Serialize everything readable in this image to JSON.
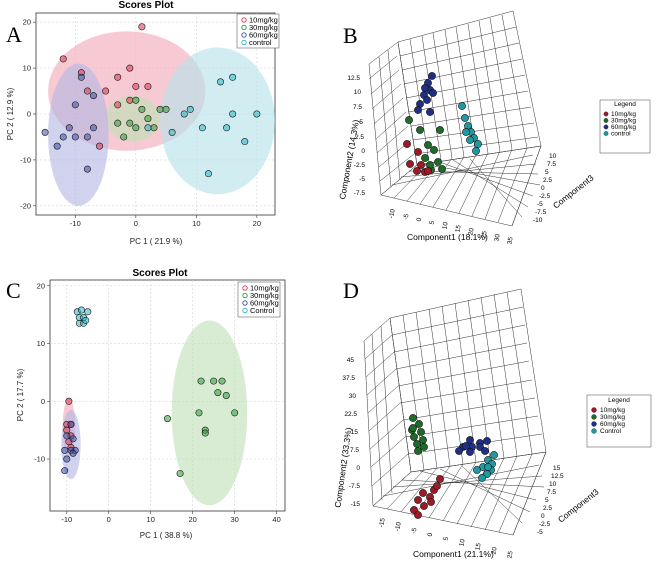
{
  "colors": {
    "10mg/kg": "#e0324f",
    "30mg/kg": "#2f9c35",
    "60mg/kg": "#3a4ea8",
    "control": "#2bb6c9",
    "10mg/kg_dark": "#9e1a26",
    "30mg/kg_dark": "#1f6b2a",
    "60mg/kg_dark": "#1f2f88",
    "control_dark": "#1e9aa3",
    "ellipse_10": "#f2a9b8",
    "ellipse_30": "#bfe0b7",
    "ellipse_60": "#b4b6e3",
    "ellipse_control": "#b5e2ea"
  },
  "chart_data": [
    {
      "panel": "A",
      "type": "scatter",
      "title": "Scores Plot",
      "xlabel": "PC 1 ( 21.9 %)",
      "ylabel": "PC 2 ( 12.9 %)",
      "xlim": [
        -16.5,
        23
      ],
      "ylim": [
        -22,
        22
      ],
      "xticks": [
        -10,
        0,
        10,
        20
      ],
      "yticks": [
        -20,
        -10,
        0,
        10,
        20
      ],
      "tick_labels_x": [
        "-10",
        "0",
        "10",
        "20"
      ],
      "tick_labels_y": [
        "-20",
        "-10",
        "0",
        "10",
        "20"
      ],
      "legend": [
        "10mg/kg",
        "30mg/kg",
        "60mg/kg",
        "control"
      ],
      "series": [
        {
          "name": "10mg/kg",
          "ellipse": {
            "cx": -1.5,
            "cy": 5,
            "rx": 13,
            "ry": 13
          },
          "points": [
            [
              1,
              19
            ],
            [
              -12,
              12
            ],
            [
              -1,
              10
            ],
            [
              -9,
              9
            ],
            [
              -3,
              8
            ],
            [
              -8,
              5
            ],
            [
              0,
              6
            ],
            [
              2,
              6
            ],
            [
              -5,
              5
            ],
            [
              -3,
              2
            ],
            [
              -1,
              3
            ],
            [
              -6,
              -7
            ]
          ]
        },
        {
          "name": "30mg/kg",
          "ellipse": {
            "cx": -0.5,
            "cy": -1,
            "rx": 4.5,
            "ry": 5
          },
          "points": [
            [
              -3,
              -2
            ],
            [
              -1,
              -2
            ],
            [
              0,
              -3
            ],
            [
              2,
              -1
            ],
            [
              3,
              -3
            ],
            [
              4,
              1
            ],
            [
              1,
              1
            ],
            [
              -2,
              -5
            ],
            [
              0,
              3
            ],
            [
              5,
              1
            ]
          ]
        },
        {
          "name": "60mg/kg",
          "ellipse": {
            "cx": -9.5,
            "cy": -4.5,
            "rx": 5,
            "ry": 15.5
          },
          "points": [
            [
              -9,
              8
            ],
            [
              -7,
              4
            ],
            [
              -10,
              2
            ],
            [
              -7,
              -3
            ],
            [
              -11,
              -3
            ],
            [
              -8,
              -5
            ],
            [
              -10,
              -5
            ],
            [
              -12,
              -5
            ],
            [
              -15,
              -4
            ],
            [
              -8,
              -12
            ],
            [
              -13,
              -7
            ]
          ]
        },
        {
          "name": "control",
          "ellipse": {
            "cx": 13.5,
            "cy": -1.5,
            "rx": 9.5,
            "ry": 16
          },
          "points": [
            [
              14,
              7
            ],
            [
              16,
              8
            ],
            [
              9,
              1
            ],
            [
              6,
              -4
            ],
            [
              11,
              -3
            ],
            [
              15,
              -3
            ],
            [
              18,
              -6
            ],
            [
              12,
              -13
            ],
            [
              16,
              0
            ],
            [
              20,
              0
            ],
            [
              2,
              -3
            ],
            [
              8,
              0
            ]
          ]
        }
      ]
    },
    {
      "panel": "B",
      "type": "scatter3d",
      "xlabel": "Component1 (18.1%)",
      "ylabel": "Component2 (14.3%)",
      "zlabel": "Component3",
      "xticks": [
        "-10",
        "-5",
        "0",
        "5",
        "10",
        "15",
        "20",
        "25",
        "30",
        "35"
      ],
      "yticks": [
        "-7.5",
        "-5",
        "-2.5",
        "0",
        "2.5",
        "5",
        "7.5",
        "10",
        "12.5"
      ],
      "zticks": [
        "-10",
        "-7.5",
        "-5",
        "-2.5",
        "0",
        "2.5",
        "5",
        "7.5",
        "10"
      ],
      "legend_title": "Legend",
      "legend": [
        "10mg/kg",
        "30mg/kg",
        "60mg/kg",
        "control"
      ]
    },
    {
      "panel": "C",
      "type": "scatter",
      "title": "Scores Plot",
      "xlabel": "PC 1 ( 38.8 %)",
      "ylabel": "PC 2 ( 17.7 %)",
      "xlim": [
        -14,
        42
      ],
      "ylim": [
        -19,
        21
      ],
      "xticks": [
        -10,
        0,
        10,
        20,
        30,
        40
      ],
      "yticks": [
        -10,
        0,
        10,
        20
      ],
      "tick_labels_x": [
        "-10",
        "0",
        "10",
        "20",
        "30",
        "40"
      ],
      "tick_labels_y": [
        "-10",
        "0",
        "10",
        "20"
      ],
      "legend": [
        "10mg/kg",
        "30mg/kg",
        "60mg/kg",
        "Control"
      ],
      "series": [
        {
          "name": "10mg/kg",
          "ellipse": {
            "cx": -9.5,
            "cy": -4.5,
            "rx": 1.5,
            "ry": 5
          },
          "points": [
            [
              -9.5,
              0
            ],
            [
              -10,
              -4
            ],
            [
              -9,
              -4
            ],
            [
              -9,
              -6
            ],
            [
              -9.5,
              -7
            ],
            [
              -9,
              -8
            ],
            [
              -10,
              -5
            ]
          ]
        },
        {
          "name": "30mg/kg",
          "ellipse": {
            "cx": 24,
            "cy": -2,
            "rx": 9,
            "ry": 16
          },
          "points": [
            [
              22,
              3.5
            ],
            [
              25,
              3.5
            ],
            [
              27,
              3.5
            ],
            [
              26,
              1.5
            ],
            [
              30,
              -2
            ],
            [
              28,
              1
            ],
            [
              23,
              -5
            ],
            [
              23,
              -5.5
            ],
            [
              14,
              -3
            ],
            [
              21.5,
              -2
            ],
            [
              17,
              -12.5
            ]
          ]
        },
        {
          "name": "60mg/kg",
          "ellipse": {
            "cx": -9,
            "cy": -7.5,
            "rx": 2.3,
            "ry": 6
          },
          "points": [
            [
              -10,
              -6
            ],
            [
              -9,
              -4
            ],
            [
              -8.5,
              -6.5
            ],
            [
              -8,
              -8.5
            ],
            [
              -9,
              -8.5
            ],
            [
              -10.5,
              -8.5
            ],
            [
              -10,
              -10
            ],
            [
              -10.5,
              -12
            ],
            [
              -8.5,
              -9
            ]
          ]
        },
        {
          "name": "Control",
          "ellipse": null,
          "points": [
            [
              -7.5,
              15.5
            ],
            [
              -6.5,
              15.8
            ],
            [
              -5,
              15.5
            ],
            [
              -7,
              14.5
            ],
            [
              -6,
              14.5
            ],
            [
              -7,
              13.5
            ],
            [
              -6,
              13.5
            ],
            [
              -5.5,
              14
            ]
          ]
        }
      ]
    },
    {
      "panel": "D",
      "type": "scatter3d",
      "xlabel": "Component1 (21.1%)",
      "ylabel": "Component2 (33.3%)",
      "zlabel": "Component3",
      "xticks": [
        "-15",
        "-10",
        "-5",
        "0",
        "5",
        "10",
        "15",
        "20",
        "25"
      ],
      "yticks": [
        "-15",
        "-7.5",
        "0",
        "7.5",
        "15",
        "22.5",
        "30",
        "37.5",
        "45"
      ],
      "zticks": [
        "-5",
        "-2.5",
        "0",
        "2.5",
        "5",
        "7.5",
        "10",
        "12.5",
        "15"
      ],
      "legend_title": "Legend",
      "legend": [
        "10mg/kg",
        "30mg/kg",
        "60mg/kg",
        "Control"
      ]
    }
  ]
}
